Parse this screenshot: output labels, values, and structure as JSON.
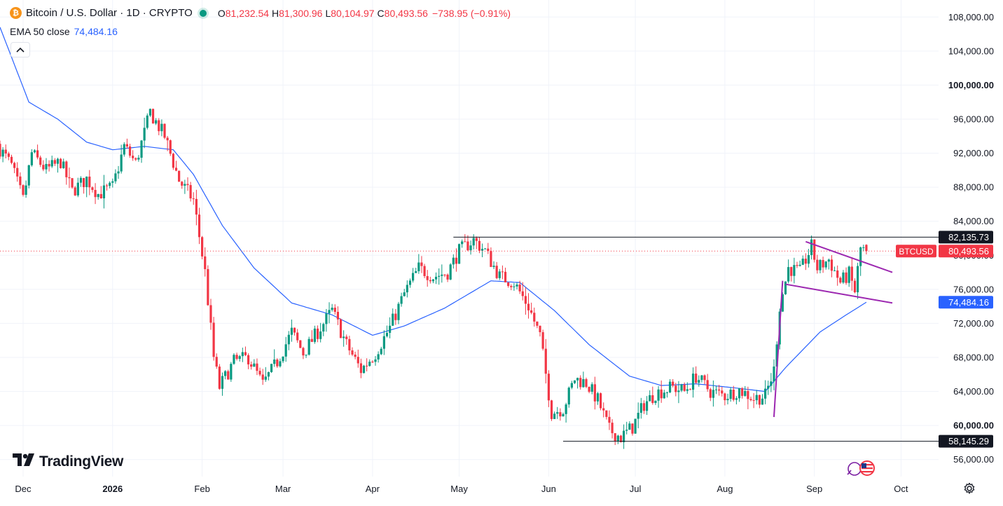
{
  "header": {
    "symbol_title": "Bitcoin / U.S. Dollar · 1D · CRYPTO",
    "open_label": "O",
    "open": "81,232.54",
    "high_label": "H",
    "high": "81,300.96",
    "low_label": "L",
    "low": "80,104.97",
    "close_label": "C",
    "close": "80,493.56",
    "change": "−738.95 (−0.91%)",
    "coin_glyph": "₿"
  },
  "indicator": {
    "label": "EMA 50 close",
    "value": "74,484.16"
  },
  "logo": "TradingView",
  "icons": [
    "bitcoin-icon",
    "live-status-icon",
    "collapse-chevron-icon",
    "tradingview-logo-icon",
    "settings-gear-icon",
    "economic-events-flag-icon"
  ],
  "colors": {
    "up": "#089981",
    "down": "#f23645",
    "ema": "#2962ff",
    "pattern": "#9c27b0",
    "level_line": "#131722",
    "grid": "#f0f3fa"
  },
  "chart_data": {
    "type": "candlestick",
    "title": "Bitcoin / U.S. Dollar · 1D · CRYPTO",
    "ylim": [
      54000,
      110000
    ],
    "y_ticks": [
      56000,
      60000,
      64000,
      68000,
      72000,
      76000,
      80000,
      84000,
      88000,
      92000,
      96000,
      100000,
      104000,
      108000
    ],
    "y_tick_labels": [
      "56,000.00",
      "60,000.00",
      "64,000.00",
      "68,000.00",
      "72,000.00",
      "76,000.00",
      "80,000.00",
      "84,000.00",
      "88,000.00",
      "92,000.00",
      "96,000.00",
      "100,000.00",
      "104,000.00",
      "108,000.00"
    ],
    "bold_ticks": [
      "60,000.00",
      "100,000.00"
    ],
    "x_start": "2025-11-23",
    "x_end": "2026-10-14",
    "x_ticks": [
      {
        "date": "2025-12-01",
        "label": "Dec",
        "bold": false
      },
      {
        "date": "2026-01-01",
        "label": "2026",
        "bold": true
      },
      {
        "date": "2026-02-01",
        "label": "Feb",
        "bold": false
      },
      {
        "date": "2026-03-01",
        "label": "Mar",
        "bold": false
      },
      {
        "date": "2026-04-01",
        "label": "Apr",
        "bold": false
      },
      {
        "date": "2026-05-01",
        "label": "May",
        "bold": false
      },
      {
        "date": "2026-06-01",
        "label": "Jun",
        "bold": false
      },
      {
        "date": "2026-07-01",
        "label": "Jul",
        "bold": false
      },
      {
        "date": "2026-08-01",
        "label": "Aug",
        "bold": false
      },
      {
        "date": "2026-09-01",
        "label": "Sep",
        "bold": false
      },
      {
        "date": "2026-10-01",
        "label": "Oct",
        "bold": false
      }
    ],
    "series_name": "BTCUSD",
    "close_anchors": [
      [
        "2025-11-23",
        92500
      ],
      [
        "2025-11-27",
        90500
      ],
      [
        "2025-12-01",
        86500
      ],
      [
        "2025-12-04",
        92000
      ],
      [
        "2025-12-09",
        90000
      ],
      [
        "2025-12-14",
        91000
      ],
      [
        "2025-12-18",
        87500
      ],
      [
        "2025-12-23",
        89000
      ],
      [
        "2025-12-27",
        87200
      ],
      [
        "2026-01-01",
        88000
      ],
      [
        "2026-01-05",
        92800
      ],
      [
        "2026-01-09",
        90800
      ],
      [
        "2026-01-14",
        96800
      ],
      [
        "2026-01-19",
        94000
      ],
      [
        "2026-01-24",
        88800
      ],
      [
        "2026-01-29",
        86500
      ],
      [
        "2026-02-02",
        78000
      ],
      [
        "2026-02-05",
        68000
      ],
      [
        "2026-02-07",
        64500
      ],
      [
        "2026-02-12",
        67500
      ],
      [
        "2026-02-17",
        68000
      ],
      [
        "2026-02-22",
        64800
      ],
      [
        "2026-02-27",
        67500
      ],
      [
        "2026-03-04",
        71000
      ],
      [
        "2026-03-08",
        68500
      ],
      [
        "2026-03-14",
        71500
      ],
      [
        "2026-03-18",
        73500
      ],
      [
        "2026-03-23",
        69500
      ],
      [
        "2026-03-28",
        66500
      ],
      [
        "2026-04-02",
        68500
      ],
      [
        "2026-04-07",
        71500
      ],
      [
        "2026-04-12",
        75500
      ],
      [
        "2026-04-17",
        78500
      ],
      [
        "2026-04-22",
        77500
      ],
      [
        "2026-04-27",
        78000
      ],
      [
        "2026-05-01",
        80500
      ],
      [
        "2026-05-06",
        81800
      ],
      [
        "2026-05-10",
        80500
      ],
      [
        "2026-05-15",
        77500
      ],
      [
        "2026-05-20",
        76800
      ],
      [
        "2026-05-25",
        74000
      ],
      [
        "2026-05-29",
        70500
      ],
      [
        "2026-06-02",
        61500
      ],
      [
        "2026-06-06",
        62000
      ],
      [
        "2026-06-10",
        65500
      ],
      [
        "2026-06-14",
        65000
      ],
      [
        "2026-06-18",
        63000
      ],
      [
        "2026-06-22",
        59500
      ],
      [
        "2026-06-26",
        58600
      ],
      [
        "2026-06-30",
        59800
      ],
      [
        "2026-07-04",
        62500
      ],
      [
        "2026-07-08",
        63800
      ],
      [
        "2026-07-14",
        64500
      ],
      [
        "2026-07-18",
        64000
      ],
      [
        "2026-07-22",
        65800
      ],
      [
        "2026-07-27",
        64000
      ],
      [
        "2026-08-01",
        63500
      ],
      [
        "2026-08-06",
        64200
      ],
      [
        "2026-08-11",
        63200
      ],
      [
        "2026-08-15",
        63500
      ],
      [
        "2026-08-18",
        66500
      ],
      [
        "2026-08-20",
        74000
      ],
      [
        "2026-08-23",
        78500
      ],
      [
        "2026-08-27",
        78000
      ],
      [
        "2026-08-31",
        81000
      ],
      [
        "2026-09-02",
        78500
      ],
      [
        "2026-09-06",
        79500
      ],
      [
        "2026-09-10",
        76800
      ],
      [
        "2026-09-13",
        77800
      ],
      [
        "2026-09-15",
        75800
      ],
      [
        "2026-09-17",
        80800
      ],
      [
        "2026-09-19",
        80493.56
      ]
    ],
    "ema50_anchors": [
      [
        "2025-11-23",
        106800
      ],
      [
        "2025-12-03",
        98000
      ],
      [
        "2025-12-13",
        96000
      ],
      [
        "2025-12-23",
        93300
      ],
      [
        "2026-01-01",
        92400
      ],
      [
        "2026-01-12",
        92800
      ],
      [
        "2026-01-22",
        92400
      ],
      [
        "2026-01-29",
        89500
      ],
      [
        "2026-02-08",
        83500
      ],
      [
        "2026-02-19",
        78500
      ],
      [
        "2026-03-04",
        74400
      ],
      [
        "2026-03-18",
        73000
      ],
      [
        "2026-04-01",
        70600
      ],
      [
        "2026-04-12",
        71700
      ],
      [
        "2026-04-26",
        73800
      ],
      [
        "2026-05-06",
        75800
      ],
      [
        "2026-05-12",
        77000
      ],
      [
        "2026-05-22",
        76800
      ],
      [
        "2026-06-03",
        73500
      ],
      [
        "2026-06-15",
        69500
      ],
      [
        "2026-06-29",
        65800
      ],
      [
        "2026-07-10",
        64700
      ],
      [
        "2026-07-22",
        64900
      ],
      [
        "2026-08-05",
        64400
      ],
      [
        "2026-08-15",
        64000
      ],
      [
        "2026-08-22",
        66800
      ],
      [
        "2026-09-03",
        71000
      ],
      [
        "2026-09-12",
        73000
      ],
      [
        "2026-09-19",
        74484.16
      ]
    ],
    "horizontal_levels": [
      {
        "label": "82,135.73",
        "value": 82135.73,
        "from": "2026-04-29",
        "to": "2026-10-14"
      },
      {
        "label": "58,145.29",
        "value": 58145.29,
        "from": "2026-06-06",
        "to": "2026-10-14"
      }
    ],
    "trend_lines": [
      {
        "name": "flagpole",
        "points": [
          [
            "2026-08-18",
            61000
          ],
          [
            "2026-08-21",
            77000
          ]
        ]
      },
      {
        "name": "flag-upper",
        "points": [
          [
            "2026-08-29",
            81600
          ],
          [
            "2026-09-28",
            78000
          ]
        ]
      },
      {
        "name": "flag-lower",
        "points": [
          [
            "2026-08-22",
            76600
          ],
          [
            "2026-09-28",
            74400
          ]
        ]
      }
    ],
    "price_tags": [
      {
        "label": "82,135.73",
        "value": 82135.73,
        "style": "level"
      },
      {
        "label": "80,493.56",
        "value": 80493.56,
        "style": "last-price",
        "series_label": "BTCUSD"
      },
      {
        "label": "74,484.16",
        "value": 74484.16,
        "style": "ema"
      },
      {
        "label": "58,145.29",
        "value": 58145.29,
        "style": "level"
      }
    ]
  }
}
